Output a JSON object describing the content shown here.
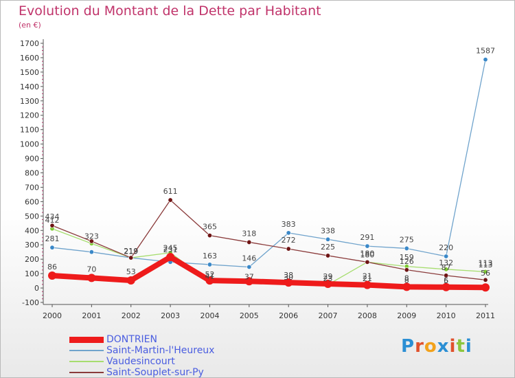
{
  "title": "Evolution du Montant de la Dette par Habitant",
  "subtitle": "(en €)",
  "logo": {
    "text": "Proxiti",
    "letter_colors": [
      "#2b8fd4",
      "#e0512c",
      "#f2a21c",
      "#2b8fd4",
      "#e0512c",
      "#8cc63e",
      "#2b8fd4"
    ]
  },
  "chart_data": {
    "type": "line",
    "title": "Evolution du Montant de la Dette par Habitant",
    "ylabel": "(en €)",
    "xlabel": "",
    "ylim": [
      -100,
      1700
    ],
    "yticks": [
      -100,
      0,
      100,
      200,
      300,
      400,
      500,
      600,
      700,
      800,
      900,
      1000,
      1100,
      1200,
      1300,
      1400,
      1500,
      1600,
      1700
    ],
    "x": [
      "2000",
      "2001",
      "2002",
      "2003",
      "2004",
      "2005",
      "2006",
      "2007",
      "2008",
      "2009",
      "2010",
      "2011"
    ],
    "grid": false,
    "legend_position": "bottom-left",
    "series": [
      {
        "name": "Saint-Martin-l'Heureux",
        "color": "#6fa3cc",
        "marker": "#3a88c8",
        "values": [
          281,
          250,
          210,
          180,
          163,
          146,
          383,
          338,
          291,
          275,
          220,
          1587
        ],
        "labels": [
          "281",
          "",
          "",
          "",
          "163",
          "146",
          "383",
          "338",
          "291",
          "275",
          "220",
          "1587"
        ]
      },
      {
        "name": "Vaudesincourt",
        "color": "#a6dd6e",
        "marker": "#7fcb33",
        "values": [
          412,
          309,
          210,
          245,
          44,
          37,
          30,
          23,
          180,
          150,
          130,
          113
        ],
        "labels": [
          "412",
          "",
          "",
          "",
          "",
          "",
          "",
          "",
          "",
          "",
          "",
          "113"
        ]
      },
      {
        "name": "Saint-Souplet-sur-Py",
        "color": "#8a3a3a",
        "marker": "#6e1414",
        "values": [
          434,
          325,
          210,
          611,
          365,
          318,
          272,
          225,
          180,
          126,
          87,
          56
        ],
        "labels": [
          "434",
          "",
          "",
          "611",
          "365",
          "318",
          "272",
          "225",
          "180",
          "",
          "",
          ""
        ]
      },
      {
        "name": "DONTRIEN",
        "color": "#ee1b1b",
        "marker": "#ee1b1b",
        "values": [
          86,
          70,
          53,
          215,
          52,
          47,
          38,
          29,
          21,
          8,
          6,
          4
        ],
        "labels": [
          "86",
          "70",
          "53",
          "",
          "",
          "",
          "",
          "",
          "21",
          "8",
          "",
          ""
        ]
      }
    ],
    "extra_labels": [
      "323",
      "219",
      "219",
      "245",
      "231",
      "52",
      "41",
      "37",
      "38",
      "30",
      "29",
      "23",
      "180",
      "159",
      "126",
      "132",
      "87",
      "5",
      "56",
      "8",
      "21",
      "6",
      "113"
    ],
    "legend": [
      "DONTRIEN",
      "Saint-Martin-l'Heureux",
      "Vaudesincourt",
      "Saint-Souplet-sur-Py"
    ]
  }
}
